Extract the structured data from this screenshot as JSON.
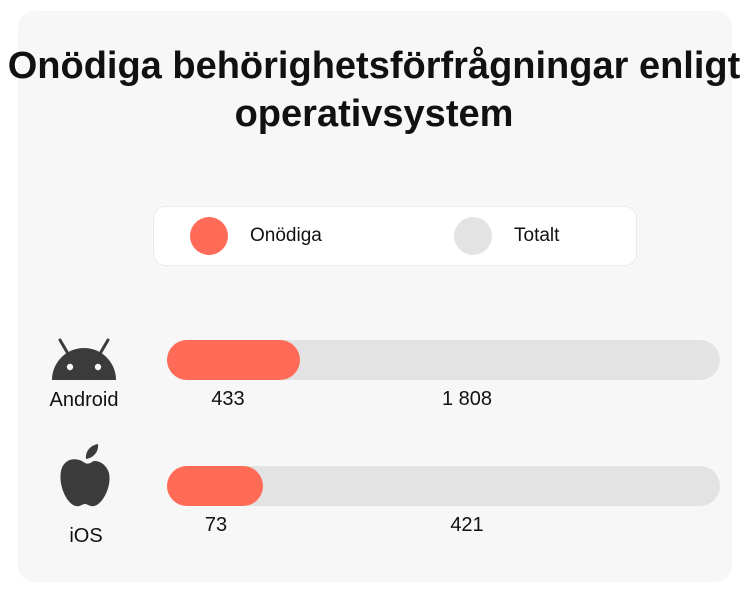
{
  "chart_data": {
    "type": "bar",
    "title": "Onödiga behörighetsförfrågningar enligt operativsystem",
    "categories": [
      "Android",
      "iOS"
    ],
    "series": [
      {
        "name": "Onödiga",
        "values": [
          433,
          73
        ]
      },
      {
        "name": "Totalt",
        "values": [
          1808,
          421
        ]
      }
    ],
    "display_values": {
      "Onödiga": [
        "433",
        "73"
      ],
      "Totalt": [
        "1 808",
        "421"
      ]
    },
    "legend_position": "top",
    "grid": false,
    "colors": {
      "Onödiga": "#ff6b57",
      "Totalt": "#e3e3e3"
    }
  },
  "icons": {
    "android": "android-icon",
    "ios": "apple-icon"
  }
}
